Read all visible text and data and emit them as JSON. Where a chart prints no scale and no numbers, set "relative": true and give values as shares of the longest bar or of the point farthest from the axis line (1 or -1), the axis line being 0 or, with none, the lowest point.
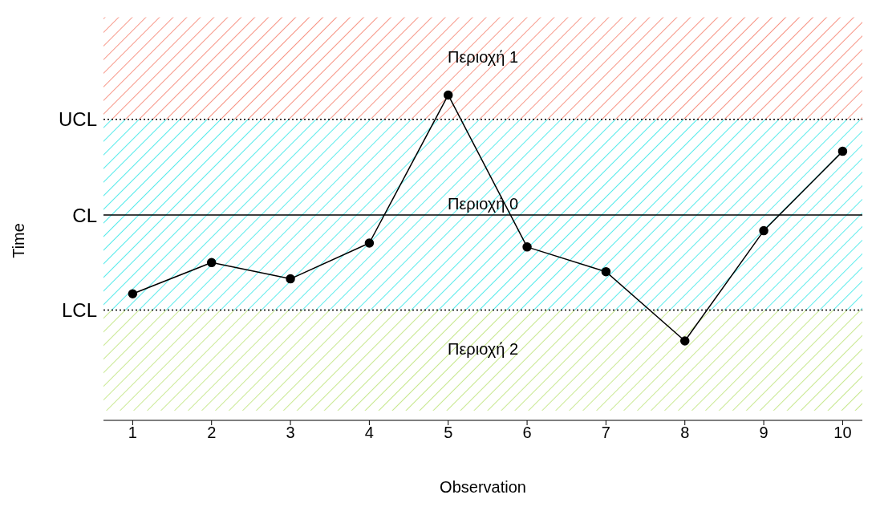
{
  "chart_data": {
    "type": "line",
    "relative": true,
    "xlabel": "Observation",
    "ylabel": "Time",
    "x": [
      1,
      2,
      3,
      4,
      5,
      6,
      7,
      8,
      9,
      10
    ],
    "xlim": [
      0.63,
      10.25
    ],
    "xticks": [
      1,
      2,
      3,
      4,
      5,
      6,
      7,
      8,
      9,
      10
    ],
    "series": [
      {
        "color": "#000000",
        "values": [
          0.389,
          0.485,
          0.435,
          0.545,
          1,
          0.533,
          0.457,
          0.244,
          0.583,
          0.827
        ]
      }
    ],
    "marker": "circle",
    "line_style": "solid",
    "ref_lines": [
      {
        "axis": "y",
        "value": 0.925,
        "label": "UCL",
        "color": "#000000",
        "line_style": "dotted"
      },
      {
        "axis": "y",
        "value": 0.631,
        "label": "CL",
        "color": "#000000",
        "line_style": "solid"
      },
      {
        "axis": "y",
        "value": 0.339,
        "label": "LCL",
        "color": "#000000",
        "line_style": "dotted"
      }
    ],
    "bands": [
      {
        "axis": "y",
        "from": 0.925,
        "to": 1.239,
        "label": "Περιοχή 1",
        "color": "#f4725e"
      },
      {
        "axis": "y",
        "from": 0.339,
        "to": 0.925,
        "label": "Περιοχή 0",
        "color": "#22e5e5"
      },
      {
        "axis": "y",
        "from": 0.03,
        "to": 0.339,
        "label": "Περιοχή 2",
        "color": "#b5e06a"
      }
    ]
  }
}
